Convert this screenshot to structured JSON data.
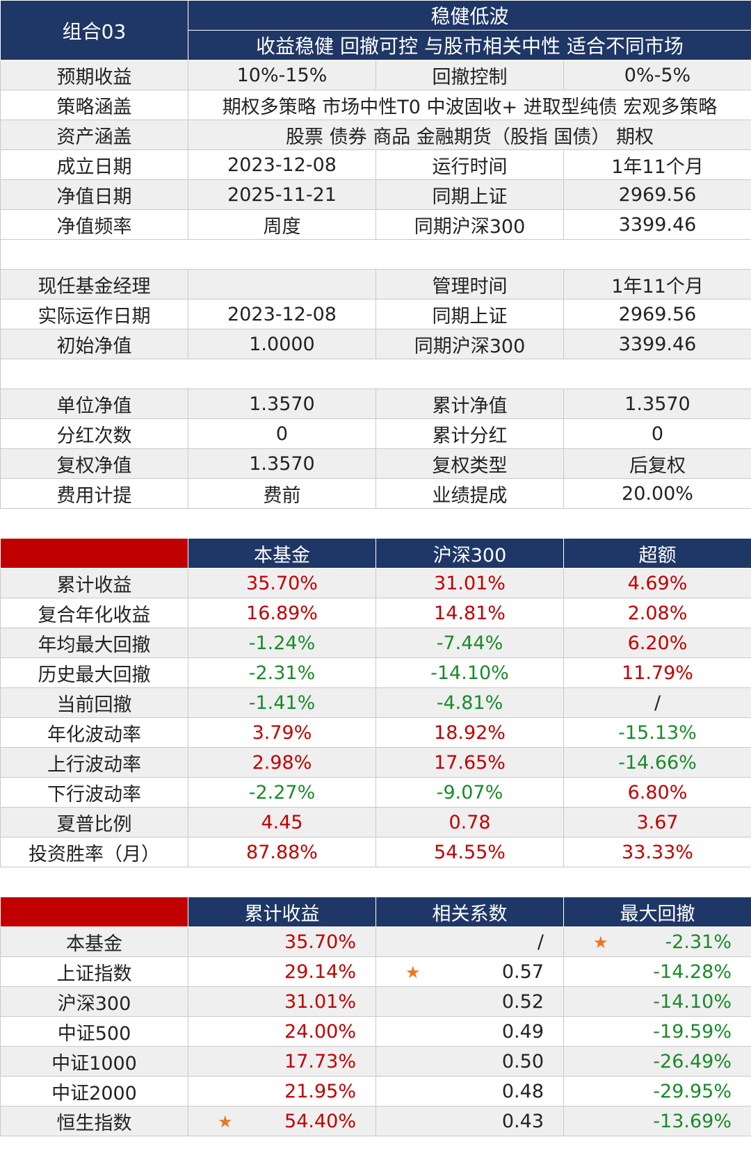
{
  "header": {
    "group": "组合03",
    "title": "稳健低波",
    "subtitle": "收益稳健  回撤可控  与股市相关中性  适合不同市场"
  },
  "info_rows": [
    [
      "预期收益",
      "10%-15%",
      "回撤控制",
      "0%-5%"
    ],
    [
      "策略涵盖",
      "期权多策略  市场中性T0  中波固收+  进取型纯债  宏观多策略"
    ],
    [
      "资产涵盖",
      "股票  债券  商品  金融期货（股指  国债）  期权"
    ],
    [
      "成立日期",
      "2023-12-08",
      "运行时间",
      "1年11个月"
    ],
    [
      "净值日期",
      "2025-11-21",
      "同期上证",
      "2969.56"
    ],
    [
      "净值频率",
      "周度",
      "同期沪深300",
      "3399.46"
    ]
  ],
  "manager_rows": [
    [
      "现任基金经理",
      "",
      "管理时间",
      "1年11个月"
    ],
    [
      "实际运作日期",
      "2023-12-08",
      "同期上证",
      "2969.56"
    ],
    [
      "初始净值",
      "1.0000",
      "同期沪深300",
      "3399.46"
    ]
  ],
  "nav_rows": [
    [
      "单位净值",
      "1.3570",
      "累计净值",
      "1.3570"
    ],
    [
      "分红次数",
      "0",
      "累计分红",
      "0"
    ],
    [
      "复权净值",
      "1.3570",
      "复权类型",
      "后复权"
    ],
    [
      "费用计提",
      "费前",
      "业绩提成",
      "20.00%"
    ]
  ],
  "perf": {
    "headers": [
      "本基金",
      "沪深300",
      "超额"
    ],
    "rows": [
      {
        "label": "累计收益",
        "values": [
          "35.70%",
          "31.01%",
          "4.69%"
        ],
        "colors": [
          "red",
          "red",
          "red"
        ]
      },
      {
        "label": "复合年化收益",
        "values": [
          "16.89%",
          "14.81%",
          "2.08%"
        ],
        "colors": [
          "red",
          "red",
          "red"
        ]
      },
      {
        "label": "年均最大回撤",
        "values": [
          "-1.24%",
          "-7.44%",
          "6.20%"
        ],
        "colors": [
          "green",
          "green",
          "red"
        ]
      },
      {
        "label": "历史最大回撤",
        "values": [
          "-2.31%",
          "-14.10%",
          "11.79%"
        ],
        "colors": [
          "green",
          "green",
          "red"
        ]
      },
      {
        "label": "当前回撤",
        "values": [
          "-1.41%",
          "-4.81%",
          "/"
        ],
        "colors": [
          "green",
          "green",
          ""
        ]
      },
      {
        "label": "年化波动率",
        "values": [
          "3.79%",
          "18.92%",
          "-15.13%"
        ],
        "colors": [
          "red",
          "red",
          "green"
        ]
      },
      {
        "label": "上行波动率",
        "values": [
          "2.98%",
          "17.65%",
          "-14.66%"
        ],
        "colors": [
          "red",
          "red",
          "green"
        ]
      },
      {
        "label": "下行波动率",
        "values": [
          "-2.27%",
          "-9.07%",
          "6.80%"
        ],
        "colors": [
          "green",
          "green",
          "red"
        ]
      },
      {
        "label": "夏普比例",
        "values": [
          "4.45",
          "0.78",
          "3.67"
        ],
        "colors": [
          "red",
          "red",
          "red"
        ]
      },
      {
        "label": "投资胜率（月）",
        "values": [
          "87.88%",
          "54.55%",
          "33.33%"
        ],
        "colors": [
          "red",
          "red",
          "red"
        ]
      }
    ]
  },
  "compare": {
    "headers": [
      "累计收益",
      "相关系数",
      "最大回撤"
    ],
    "star": "★",
    "rows": [
      {
        "label": "本基金",
        "values": [
          "35.70%",
          "/",
          "-2.31%"
        ],
        "stars": [
          false,
          false,
          true
        ]
      },
      {
        "label": "上证指数",
        "values": [
          "29.14%",
          "0.57",
          "-14.28%"
        ],
        "stars": [
          false,
          true,
          false
        ]
      },
      {
        "label": "沪深300",
        "values": [
          "31.01%",
          "0.52",
          "-14.10%"
        ],
        "stars": [
          false,
          false,
          false
        ]
      },
      {
        "label": "中证500",
        "values": [
          "24.00%",
          "0.49",
          "-19.59%"
        ],
        "stars": [
          false,
          false,
          false
        ]
      },
      {
        "label": "中证1000",
        "values": [
          "17.73%",
          "0.50",
          "-26.49%"
        ],
        "stars": [
          false,
          false,
          false
        ]
      },
      {
        "label": "中证2000",
        "values": [
          "21.95%",
          "0.48",
          "-29.95%"
        ],
        "stars": [
          false,
          false,
          false
        ]
      },
      {
        "label": "恒生指数",
        "values": [
          "54.40%",
          "0.43",
          "-13.69%"
        ],
        "stars": [
          true,
          false,
          false
        ]
      }
    ]
  },
  "colors": {
    "navy": "#1f3766",
    "red": "#c00000",
    "green": "#1a8a2a",
    "star": "#e87722"
  }
}
